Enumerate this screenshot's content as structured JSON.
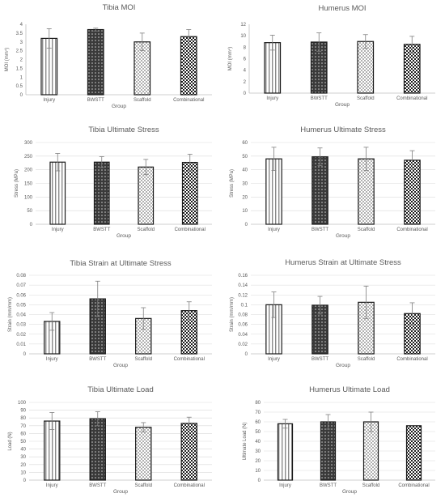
{
  "colors": {
    "axis": "#bfbfbf",
    "grid": "#d9d9d9",
    "text": "#595959",
    "bar_outline": "#1a1a1a",
    "error_bar": "#7f7f7f"
  },
  "bar_patterns": [
    "vertical-stripes",
    "dark-diamond-dots",
    "light-checker",
    "dark-checker"
  ],
  "chart_data": [
    {
      "type": "bar",
      "title": "Tibia MOI",
      "categories": [
        "Injury",
        "BWSTT",
        "Scaffold",
        "Combinational"
      ],
      "values": [
        3.2,
        3.7,
        3.0,
        3.3
      ],
      "errors": [
        0.55,
        0.08,
        0.5,
        0.4
      ],
      "xlabel": "Group",
      "ylabel": "MOI (mm^4)",
      "ylim": [
        0,
        4
      ],
      "yticks": [
        "0",
        "0.5",
        "1",
        "1.5",
        "2",
        "2.5",
        "3",
        "3.5",
        "4"
      ],
      "grid": false
    },
    {
      "type": "bar",
      "title": "Humerus MOI",
      "categories": [
        "Injury",
        "BWSTT",
        "Scaffold",
        "Combinational"
      ],
      "values": [
        8.8,
        8.9,
        9.0,
        8.5
      ],
      "errors": [
        1.3,
        1.6,
        1.2,
        1.4
      ],
      "xlabel": "Group",
      "ylabel": "MOI (mm^4)",
      "ylim": [
        0,
        12
      ],
      "yticks": [
        "0",
        "2",
        "4",
        "6",
        "8",
        "10",
        "12"
      ],
      "grid": false
    },
    {
      "type": "bar",
      "title": "Tibia Ultimate Stress",
      "categories": [
        "Injury",
        "BWSTT",
        "Scaffold",
        "Combinational"
      ],
      "values": [
        228,
        228,
        210,
        227
      ],
      "errors": [
        32,
        20,
        28,
        30
      ],
      "xlabel": "Group",
      "ylabel": "Stress (MPa)",
      "ylim": [
        0,
        300
      ],
      "yticks": [
        "0",
        "50",
        "100",
        "150",
        "200",
        "250",
        "300"
      ],
      "grid": true
    },
    {
      "type": "bar",
      "title": "Humerus Ultimate Stress",
      "categories": [
        "Injury",
        "BWSTT",
        "Scaffold",
        "Combinational"
      ],
      "values": [
        48,
        49.5,
        48,
        47
      ],
      "errors": [
        8.5,
        6.5,
        8.5,
        7
      ],
      "xlabel": "Group",
      "ylabel": "Stress (MPa)",
      "ylim": [
        0,
        60
      ],
      "yticks": [
        "0",
        "10",
        "20",
        "30",
        "40",
        "50",
        "60"
      ],
      "grid": true
    },
    {
      "type": "bar",
      "title": "Tibia Strain at Ultimate Stress",
      "categories": [
        "Injury",
        "BWSTT",
        "Scaffold",
        "Combinational"
      ],
      "values": [
        0.033,
        0.056,
        0.036,
        0.044
      ],
      "errors": [
        0.009,
        0.018,
        0.011,
        0.009
      ],
      "xlabel": "Group",
      "ylabel": "Strain (mm/mm)",
      "ylim": [
        0,
        0.08
      ],
      "yticks": [
        "0",
        "0.01",
        "0.02",
        "0.03",
        "0.04",
        "0.05",
        "0.06",
        "0.07",
        "0.08"
      ],
      "grid": true
    },
    {
      "type": "bar",
      "title": "Humerus Strain at Ultimate Stress",
      "categories": [
        "Injury",
        "BWSTT",
        "Scaffold",
        "Combinational"
      ],
      "values": [
        0.1,
        0.099,
        0.105,
        0.082
      ],
      "errors": [
        0.026,
        0.018,
        0.033,
        0.022
      ],
      "xlabel": "Group",
      "ylabel": "Strain (mm/mm)",
      "ylim": [
        0,
        0.16
      ],
      "yticks": [
        "0",
        "0.02",
        "0.04",
        "0.06",
        "0.08",
        "0.1",
        "0.12",
        "0.14",
        "0.16"
      ],
      "grid": true
    },
    {
      "type": "bar",
      "title": "Tibia Ultimate Load",
      "categories": [
        "Injury",
        "BWSTT",
        "Scaffold",
        "Combinational"
      ],
      "values": [
        76,
        79,
        68,
        73
      ],
      "errors": [
        11,
        9,
        6,
        8
      ],
      "xlabel": "Group",
      "ylabel": "Load (N)",
      "ylim": [
        0,
        100
      ],
      "yticks": [
        "0",
        "10",
        "20",
        "30",
        "40",
        "50",
        "60",
        "70",
        "80",
        "90",
        "100"
      ],
      "grid": true
    },
    {
      "type": "bar",
      "title": "Humerus Ultimate Load",
      "categories": [
        "Injury",
        "BWSTT",
        "Scaffold",
        "Combinational"
      ],
      "values": [
        58,
        60,
        60,
        56
      ],
      "errors": [
        4.5,
        7.5,
        10,
        0
      ],
      "xlabel": "Group",
      "ylabel": "Ultimate Load (N)",
      "ylim": [
        0,
        80
      ],
      "yticks": [
        "0",
        "10",
        "20",
        "30",
        "40",
        "50",
        "60",
        "70",
        "80"
      ],
      "grid": true
    }
  ]
}
